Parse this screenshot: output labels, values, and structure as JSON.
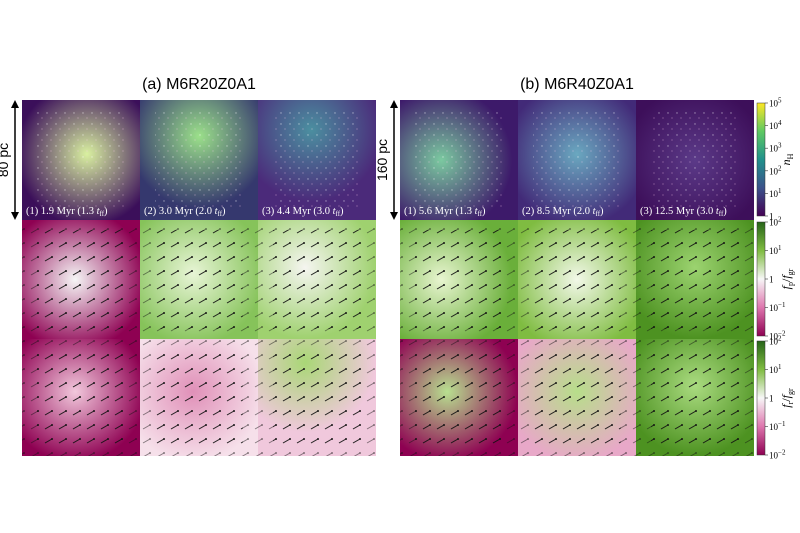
{
  "panels": [
    {
      "title": "(a) M6R20Z0A1",
      "scale": "80 pc",
      "times": [
        {
          "main": "(1) 1.9 Myr (1.3 ",
          "var": "t",
          "sub": "ff",
          "close": ")"
        },
        {
          "main": "(2) 3.0 Myr (2.0 ",
          "var": "t",
          "sub": "ff",
          "close": ")"
        },
        {
          "main": "(3) 4.4 Myr (3.0 ",
          "var": "t",
          "sub": "ff",
          "close": ")"
        }
      ]
    },
    {
      "title": "(b) M6R40Z0A1",
      "scale": "160 pc",
      "times": [
        {
          "main": "(1) 5.6 Myr (1.3 ",
          "var": "t",
          "sub": "ff",
          "close": ")"
        },
        {
          "main": "(2) 8.5 Myr (2.0 ",
          "var": "t",
          "sub": "ff",
          "close": ")"
        },
        {
          "main": "(3) 12.5 Myr (3.0 ",
          "var": "t",
          "sub": "ff",
          "close": ")"
        }
      ]
    }
  ],
  "colorbars": [
    {
      "label": {
        "var": "n",
        "sub": "H"
      },
      "ticks": [
        {
          "base": "10",
          "exp": "5"
        },
        {
          "base": "10",
          "exp": "4"
        },
        {
          "base": "10",
          "exp": "3"
        },
        {
          "base": "10",
          "exp": "2"
        },
        {
          "base": "10",
          "exp": "1"
        },
        "1"
      ]
    },
    {
      "label": {
        "num": "f",
        "num_sub": "p",
        "slash": "/",
        "den": "f",
        "den_sub": "gr"
      },
      "ticks": [
        {
          "base": "10",
          "exp": "2"
        },
        {
          "base": "10",
          "exp": "1"
        },
        "1",
        {
          "base": "10",
          "exp": "−1"
        },
        {
          "base": "10",
          "exp": "−2"
        }
      ]
    },
    {
      "label": {
        "num": "f",
        "num_sub": "r",
        "slash": "/",
        "den": "f",
        "den_sub": "gr"
      },
      "ticks": [
        {
          "base": "10",
          "exp": "2"
        },
        {
          "base": "10",
          "exp": "1"
        },
        "1",
        {
          "base": "10",
          "exp": "−1"
        },
        {
          "base": "10",
          "exp": "−2"
        }
      ]
    }
  ]
}
